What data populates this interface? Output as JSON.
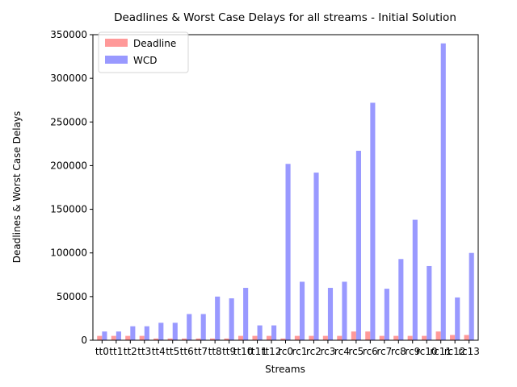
{
  "chart_data": {
    "type": "bar",
    "title": "Deadlines & Worst Case Delays for all streams - Initial Solution",
    "xlabel": "Streams",
    "ylabel": "Deadlines & Worst Case Delays",
    "ylim": [
      0,
      350000
    ],
    "yticks": [
      0,
      50000,
      100000,
      150000,
      200000,
      250000,
      300000,
      350000
    ],
    "grid": false,
    "legend_position": "top-left",
    "categories": [
      "tt0",
      "tt1",
      "tt2",
      "tt3",
      "tt4",
      "tt5",
      "tt6",
      "tt7",
      "tt8",
      "tt9",
      "tt10",
      "tt11",
      "tt12",
      "rc0",
      "rc1",
      "rc2",
      "rc3",
      "rc4",
      "rc5",
      "rc6",
      "rc7",
      "rc8",
      "rc9",
      "rc10",
      "rc11",
      "rc12",
      "rc13"
    ],
    "series": [
      {
        "name": "Deadline",
        "color": "#ff9999",
        "values": [
          5000,
          5000,
          5000,
          5000,
          2000,
          2000,
          2000,
          2000,
          2000,
          2000,
          5000,
          5000,
          5000,
          2000,
          5000,
          5000,
          5000,
          5000,
          10000,
          10000,
          5000,
          5000,
          5000,
          5000,
          10000,
          6000,
          6000
        ]
      },
      {
        "name": "WCD",
        "color": "#9999ff",
        "values": [
          10000,
          10000,
          16000,
          16000,
          20000,
          20000,
          30000,
          30000,
          50000,
          48000,
          60000,
          17000,
          17000,
          202000,
          67000,
          192000,
          60000,
          67000,
          217000,
          272000,
          59000,
          93000,
          138000,
          85000,
          340000,
          49000,
          100000
        ]
      }
    ]
  }
}
